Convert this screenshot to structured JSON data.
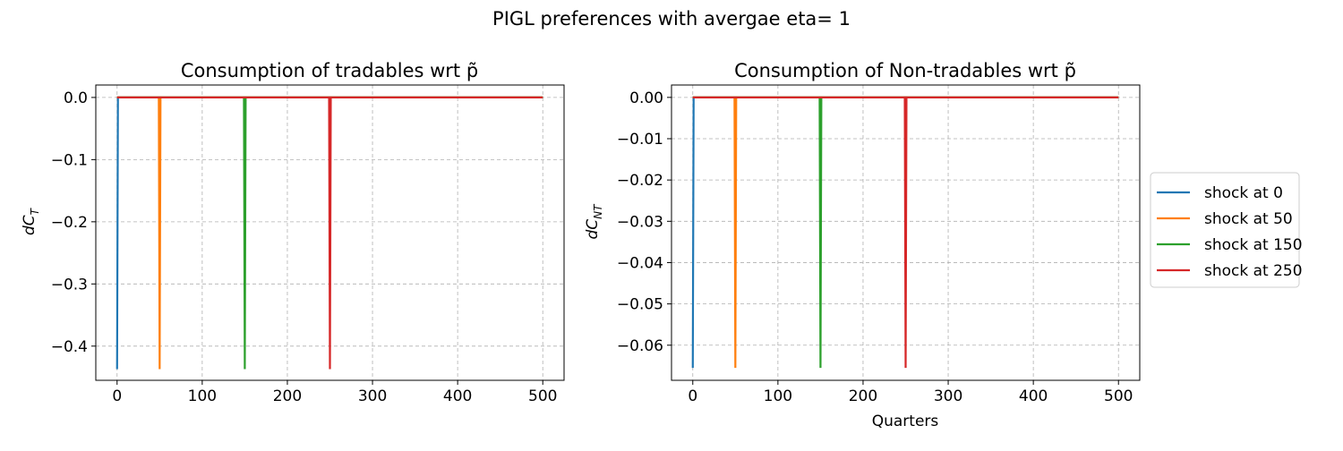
{
  "figure": {
    "suptitle": "PIGL preferences with avergae eta= 1"
  },
  "chart_data": [
    {
      "type": "line",
      "title": "Consumption of tradables wrt p̃",
      "xlabel": "",
      "ylabel": "dC_T",
      "xlim": [
        -25,
        525
      ],
      "ylim": [
        -0.455,
        0.02
      ],
      "xticks": [
        0,
        100,
        200,
        300,
        400,
        500
      ],
      "xtick_labels": [
        "0",
        "100",
        "200",
        "300",
        "400",
        "500"
      ],
      "yticks": [
        0.0,
        -0.1,
        -0.2,
        -0.3,
        -0.4
      ],
      "ytick_labels": [
        "0.0",
        "−0.1",
        "−0.2",
        "−0.3",
        "−0.4"
      ],
      "grid": true,
      "series": [
        {
          "name": "shock at 0",
          "color": "#1f77b4",
          "shock_at": 0,
          "x": [
            0,
            1,
            500
          ],
          "y": [
            -0.437,
            0.0,
            0.0
          ]
        },
        {
          "name": "shock at 50",
          "color": "#ff7f0e",
          "shock_at": 50,
          "x": [
            0,
            49,
            50,
            51,
            500
          ],
          "y": [
            0.0,
            0.0,
            -0.437,
            0.0,
            0.0
          ]
        },
        {
          "name": "shock at 150",
          "color": "#2ca02c",
          "shock_at": 150,
          "x": [
            0,
            149,
            150,
            151,
            500
          ],
          "y": [
            0.0,
            0.0,
            -0.437,
            0.0,
            0.0
          ]
        },
        {
          "name": "shock at 250",
          "color": "#d62728",
          "shock_at": 250,
          "x": [
            0,
            249,
            250,
            251,
            500
          ],
          "y": [
            0.0,
            0.0,
            -0.437,
            0.0,
            0.0
          ]
        }
      ]
    },
    {
      "type": "line",
      "title": "Consumption of Non-tradables wrt p̃",
      "xlabel": "Quarters",
      "ylabel": "dC_NT",
      "xlim": [
        -25,
        525
      ],
      "ylim": [
        -0.0685,
        0.003
      ],
      "xticks": [
        0,
        100,
        200,
        300,
        400,
        500
      ],
      "xtick_labels": [
        "0",
        "100",
        "200",
        "300",
        "400",
        "500"
      ],
      "yticks": [
        0.0,
        -0.01,
        -0.02,
        -0.03,
        -0.04,
        -0.05,
        -0.06
      ],
      "ytick_labels": [
        "0.00",
        "−0.01",
        "−0.02",
        "−0.03",
        "−0.04",
        "−0.05",
        "−0.06"
      ],
      "grid": true,
      "legend": "right-outside",
      "series": [
        {
          "name": "shock at 0",
          "color": "#1f77b4",
          "shock_at": 0,
          "x": [
            0,
            1,
            500
          ],
          "y": [
            -0.0655,
            0.0,
            0.0
          ]
        },
        {
          "name": "shock at 50",
          "color": "#ff7f0e",
          "shock_at": 50,
          "x": [
            0,
            49,
            50,
            51,
            500
          ],
          "y": [
            0.0,
            0.0,
            -0.0655,
            0.0,
            0.0
          ]
        },
        {
          "name": "shock at 150",
          "color": "#2ca02c",
          "shock_at": 150,
          "x": [
            0,
            149,
            150,
            151,
            500
          ],
          "y": [
            0.0,
            0.0,
            -0.0655,
            0.0,
            0.0
          ]
        },
        {
          "name": "shock at 250",
          "color": "#d62728",
          "shock_at": 250,
          "x": [
            0,
            249,
            250,
            251,
            500
          ],
          "y": [
            0.0,
            0.0,
            -0.0655,
            0.0,
            0.0
          ]
        }
      ]
    }
  ]
}
